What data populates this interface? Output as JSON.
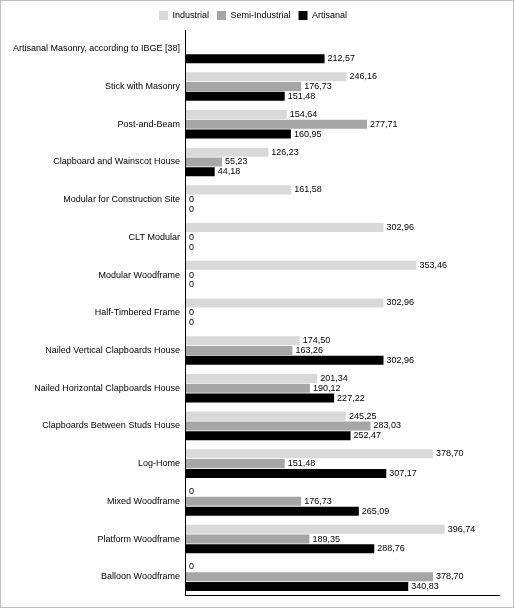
{
  "chart_data": {
    "type": "bar",
    "orientation": "horizontal",
    "categories": [
      "Artisanal Masonry, according to IBGE [38]",
      "Stick with Masonry",
      "Post-and-Beam",
      "Clapboard and Wainscot House",
      "Modular for Construction Site",
      "CLT Modular",
      "Modular Woodframe",
      "Half-Timbered Frame",
      "Nailed Vertical Clapboards House",
      "Nailed Horizontal Clapboards House",
      "Clapboards Between Studs House",
      "Log-Home",
      "Mixed Woodframe",
      "Platform Woodframe",
      "Balloon Woodframe"
    ],
    "series": [
      {
        "name": "Industrial",
        "color": "#d9d9d9",
        "values": [
          null,
          246.16,
          154.64,
          126.23,
          161.58,
          302.96,
          353.46,
          302.96,
          174.5,
          201.34,
          245.25,
          378.7,
          0,
          396.74,
          0
        ],
        "value_labels": [
          null,
          "246,16",
          "154,64",
          "126,23",
          "161,58",
          "302,96",
          "353,46",
          "302,96",
          "174,50",
          "201,34",
          "245,25",
          "378,70",
          "0",
          "396,74",
          "0"
        ]
      },
      {
        "name": "Semi-Industrial",
        "color": "#a6a6a6",
        "values": [
          null,
          176.73,
          277.71,
          55.23,
          0,
          0,
          0,
          0,
          163.26,
          190.12,
          283.03,
          151.48,
          176.73,
          189.35,
          378.7
        ],
        "value_labels": [
          null,
          "176,73",
          "277,71",
          "55,23",
          "0",
          "0",
          "0",
          "0",
          "163,26",
          "190,12",
          "283,03",
          "151,48",
          "176,73",
          "189,35",
          "378,70"
        ]
      },
      {
        "name": "Artisanal",
        "color": "#000000",
        "values": [
          212.57,
          151.48,
          160.95,
          44.18,
          0,
          0,
          0,
          0,
          302.96,
          227.22,
          252.47,
          307.17,
          265.09,
          288.76,
          340.83
        ],
        "value_labels": [
          "212,57",
          "151,48",
          "160,95",
          "44,18",
          "0",
          "0",
          "0",
          "0",
          "302,96",
          "227,22",
          "252,47",
          "307,17",
          "265,09",
          "288,76",
          "340,83"
        ]
      }
    ],
    "xlim": [
      0,
      480
    ],
    "grid": false,
    "legend": "top",
    "data_labels": true,
    "tick_labels": "y"
  }
}
